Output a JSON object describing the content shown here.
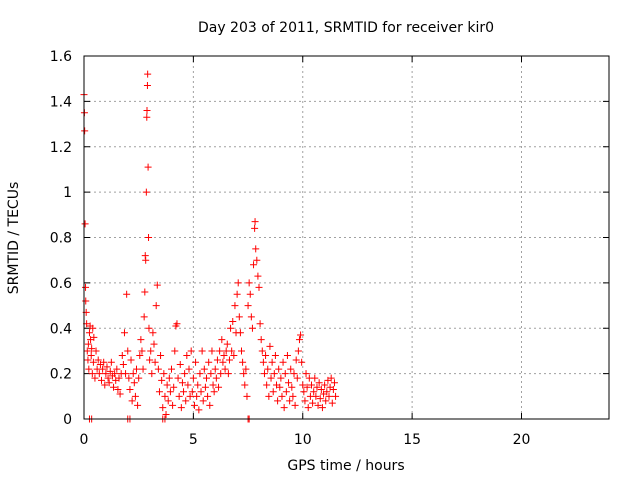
{
  "chart_data": {
    "type": "scatter",
    "title": "Day 203 of 2011, SRMTID for receiver kir0",
    "xlabel": "GPS time / hours",
    "ylabel": "SRMTID / TECUs",
    "xlim": [
      0,
      24
    ],
    "ylim": [
      0,
      1.6
    ],
    "xticks": [
      0,
      5,
      10,
      15,
      20
    ],
    "xtick_labels": [
      "0",
      "5",
      "10",
      "15",
      "20"
    ],
    "yticks": [
      0,
      0.2,
      0.4,
      0.6,
      0.8,
      1,
      1.2,
      1.4,
      1.6
    ],
    "ytick_labels": [
      "0",
      "0.2",
      "0.4",
      "0.6",
      "0.8",
      "1",
      "1.2",
      "1.4",
      "1.6"
    ],
    "grid": true,
    "marker": "+",
    "color": "#ff0000",
    "series": [
      {
        "points": [
          [
            0.0,
            1.43
          ],
          [
            0.02,
            1.35
          ],
          [
            0.03,
            1.27
          ],
          [
            0.05,
            0.86
          ],
          [
            0.07,
            0.58
          ],
          [
            0.08,
            0.52
          ],
          [
            0.1,
            0.47
          ],
          [
            0.12,
            0.42
          ],
          [
            0.15,
            0.3
          ],
          [
            0.18,
            0.26
          ],
          [
            0.2,
            0.33
          ],
          [
            0.22,
            0.22
          ],
          [
            0.25,
            0.38
          ],
          [
            0.28,
            0.41
          ],
          [
            0.3,
            0.35
          ],
          [
            0.33,
            0.28
          ],
          [
            0.35,
            0.31
          ],
          [
            0.38,
            0.2
          ],
          [
            0.4,
            0.4
          ],
          [
            0.43,
            0.25
          ],
          [
            0.45,
            0.36
          ],
          [
            0.5,
            0.18
          ],
          [
            0.55,
            0.3
          ],
          [
            0.6,
            0.22
          ],
          [
            0.25,
            0.0
          ],
          [
            0.35,
            0.0
          ],
          [
            0.65,
            0.26
          ],
          [
            0.7,
            0.2
          ],
          [
            0.75,
            0.24
          ],
          [
            0.8,
            0.17
          ],
          [
            0.85,
            0.22
          ],
          [
            0.9,
            0.25
          ],
          [
            0.95,
            0.15
          ],
          [
            1.0,
            0.2
          ],
          [
            1.05,
            0.23
          ],
          [
            1.1,
            0.18
          ],
          [
            1.15,
            0.16
          ],
          [
            1.2,
            0.21
          ],
          [
            1.25,
            0.25
          ],
          [
            1.3,
            0.19
          ],
          [
            1.35,
            0.14
          ],
          [
            1.4,
            0.2
          ],
          [
            1.45,
            0.17
          ],
          [
            1.5,
            0.22
          ],
          [
            1.55,
            0.13
          ],
          [
            1.6,
            0.18
          ],
          [
            1.65,
            0.11
          ],
          [
            1.7,
            0.2
          ],
          [
            1.75,
            0.28
          ],
          [
            1.8,
            0.24
          ],
          [
            1.85,
            0.38
          ],
          [
            1.9,
            0.2
          ],
          [
            1.95,
            0.55
          ],
          [
            2.0,
            0.3
          ],
          [
            2.05,
            0.18
          ],
          [
            2.1,
            0.13
          ],
          [
            2.15,
            0.26
          ],
          [
            2.2,
            0.08
          ],
          [
            2.0,
            0.0
          ],
          [
            2.1,
            0.0
          ],
          [
            2.25,
            0.2
          ],
          [
            2.3,
            0.16
          ],
          [
            2.35,
            0.1
          ],
          [
            2.4,
            0.22
          ],
          [
            2.45,
            0.06
          ],
          [
            2.5,
            0.18
          ],
          [
            2.55,
            0.28
          ],
          [
            2.6,
            0.35
          ],
          [
            2.65,
            0.3
          ],
          [
            2.7,
            0.22
          ],
          [
            2.75,
            0.45
          ],
          [
            2.78,
            0.56
          ],
          [
            2.8,
            0.72
          ],
          [
            2.82,
            0.7
          ],
          [
            2.85,
            1.0
          ],
          [
            2.87,
            1.33
          ],
          [
            2.88,
            1.36
          ],
          [
            2.9,
            1.47
          ],
          [
            2.91,
            1.52
          ],
          [
            2.93,
            1.11
          ],
          [
            2.95,
            0.8
          ],
          [
            2.97,
            0.4
          ],
          [
            3.0,
            0.26
          ],
          [
            3.05,
            0.3
          ],
          [
            3.1,
            0.2
          ],
          [
            3.15,
            0.38
          ],
          [
            3.2,
            0.33
          ],
          [
            3.25,
            0.25
          ],
          [
            3.3,
            0.5
          ],
          [
            3.35,
            0.59
          ],
          [
            3.4,
            0.22
          ],
          [
            3.45,
            0.12
          ],
          [
            3.5,
            0.28
          ],
          [
            3.55,
            0.17
          ],
          [
            3.6,
            0.05
          ],
          [
            3.65,
            0.2
          ],
          [
            3.7,
            0.1
          ],
          [
            3.75,
            0.02
          ],
          [
            3.8,
            0.15
          ],
          [
            3.85,
            0.08
          ],
          [
            3.6,
            0.0
          ],
          [
            3.7,
            0.0
          ],
          [
            3.9,
            0.18
          ],
          [
            3.95,
            0.12
          ],
          [
            4.0,
            0.22
          ],
          [
            4.05,
            0.06
          ],
          [
            4.1,
            0.14
          ],
          [
            4.15,
            0.3
          ],
          [
            4.2,
            0.41
          ],
          [
            4.25,
            0.42
          ],
          [
            4.3,
            0.18
          ],
          [
            4.35,
            0.1
          ],
          [
            4.4,
            0.24
          ],
          [
            4.45,
            0.05
          ],
          [
            4.5,
            0.16
          ],
          [
            4.55,
            0.12
          ],
          [
            4.6,
            0.2
          ],
          [
            4.65,
            0.08
          ],
          [
            4.7,
            0.28
          ],
          [
            4.75,
            0.15
          ],
          [
            4.8,
            0.22
          ],
          [
            4.85,
            0.1
          ],
          [
            4.9,
            0.3
          ],
          [
            4.95,
            0.12
          ],
          [
            5.0,
            0.18
          ],
          [
            5.05,
            0.06
          ],
          [
            5.1,
            0.25
          ],
          [
            5.15,
            0.1
          ],
          [
            5.2,
            0.15
          ],
          [
            5.25,
            0.04
          ],
          [
            5.3,
            0.2
          ],
          [
            5.35,
            0.12
          ],
          [
            5.4,
            0.3
          ],
          [
            5.45,
            0.08
          ],
          [
            5.5,
            0.22
          ],
          [
            5.55,
            0.14
          ],
          [
            5.6,
            0.18
          ],
          [
            5.65,
            0.1
          ],
          [
            5.7,
            0.25
          ],
          [
            5.75,
            0.06
          ],
          [
            5.8,
            0.2
          ],
          [
            5.85,
            0.3
          ],
          [
            5.9,
            0.15
          ],
          [
            5.95,
            0.12
          ],
          [
            6.0,
            0.22
          ],
          [
            6.05,
            0.18
          ],
          [
            6.1,
            0.26
          ],
          [
            6.15,
            0.14
          ],
          [
            6.2,
            0.3
          ],
          [
            6.25,
            0.2
          ],
          [
            6.3,
            0.35
          ],
          [
            6.35,
            0.25
          ],
          [
            6.4,
            0.28
          ],
          [
            6.45,
            0.22
          ],
          [
            6.5,
            0.3
          ],
          [
            6.55,
            0.33
          ],
          [
            6.6,
            0.2
          ],
          [
            6.65,
            0.26
          ],
          [
            6.7,
            0.4
          ],
          [
            6.75,
            0.3
          ],
          [
            6.8,
            0.43
          ],
          [
            6.85,
            0.28
          ],
          [
            6.9,
            0.5
          ],
          [
            6.95,
            0.38
          ],
          [
            7.0,
            0.55
          ],
          [
            7.05,
            0.6
          ],
          [
            7.1,
            0.45
          ],
          [
            7.15,
            0.38
          ],
          [
            7.2,
            0.3
          ],
          [
            7.25,
            0.25
          ],
          [
            7.3,
            0.2
          ],
          [
            7.35,
            0.15
          ],
          [
            7.4,
            0.22
          ],
          [
            7.45,
            0.1
          ],
          [
            7.5,
            0.0
          ],
          [
            7.55,
            0.0
          ],
          [
            7.5,
            0.5
          ],
          [
            7.55,
            0.6
          ],
          [
            7.6,
            0.55
          ],
          [
            7.65,
            0.45
          ],
          [
            7.7,
            0.4
          ],
          [
            7.75,
            0.68
          ],
          [
            7.8,
            0.84
          ],
          [
            7.82,
            0.87
          ],
          [
            7.85,
            0.75
          ],
          [
            7.9,
            0.7
          ],
          [
            7.95,
            0.63
          ],
          [
            8.0,
            0.58
          ],
          [
            8.05,
            0.42
          ],
          [
            8.1,
            0.35
          ],
          [
            8.15,
            0.3
          ],
          [
            8.2,
            0.25
          ],
          [
            8.25,
            0.2
          ],
          [
            8.3,
            0.28
          ],
          [
            8.35,
            0.15
          ],
          [
            8.4,
            0.22
          ],
          [
            8.45,
            0.1
          ],
          [
            8.5,
            0.32
          ],
          [
            8.55,
            0.18
          ],
          [
            8.6,
            0.25
          ],
          [
            8.65,
            0.12
          ],
          [
            8.7,
            0.2
          ],
          [
            8.75,
            0.28
          ],
          [
            8.8,
            0.15
          ],
          [
            8.85,
            0.08
          ],
          [
            8.9,
            0.22
          ],
          [
            8.95,
            0.14
          ],
          [
            9.0,
            0.18
          ],
          [
            9.05,
            0.1
          ],
          [
            9.1,
            0.25
          ],
          [
            9.15,
            0.05
          ],
          [
            9.2,
            0.2
          ],
          [
            9.25,
            0.12
          ],
          [
            9.3,
            0.28
          ],
          [
            9.35,
            0.16
          ],
          [
            9.4,
            0.08
          ],
          [
            9.45,
            0.22
          ],
          [
            9.5,
            0.14
          ],
          [
            9.55,
            0.1
          ],
          [
            9.6,
            0.2
          ],
          [
            9.65,
            0.06
          ],
          [
            9.7,
            0.26
          ],
          [
            9.75,
            0.18
          ],
          [
            9.8,
            0.3
          ],
          [
            9.85,
            0.35
          ],
          [
            9.9,
            0.37
          ],
          [
            9.95,
            0.25
          ],
          [
            10.0,
            0.15
          ],
          [
            10.05,
            0.12
          ],
          [
            10.1,
            0.08
          ],
          [
            10.15,
            0.2
          ],
          [
            10.2,
            0.14
          ],
          [
            10.25,
            0.05
          ],
          [
            10.3,
            0.18
          ],
          [
            10.35,
            0.1
          ],
          [
            10.4,
            0.15
          ],
          [
            10.45,
            0.07
          ],
          [
            10.5,
            0.12
          ],
          [
            10.55,
            0.18
          ],
          [
            10.6,
            0.1
          ],
          [
            10.65,
            0.14
          ],
          [
            10.7,
            0.06
          ],
          [
            10.75,
            0.16
          ],
          [
            10.8,
            0.09
          ],
          [
            10.85,
            0.13
          ],
          [
            10.9,
            0.05
          ],
          [
            10.95,
            0.11
          ],
          [
            11.0,
            0.15
          ],
          [
            11.05,
            0.08
          ],
          [
            11.1,
            0.12
          ],
          [
            11.15,
            0.17
          ],
          [
            11.2,
            0.1
          ],
          [
            11.25,
            0.14
          ],
          [
            11.3,
            0.18
          ],
          [
            11.35,
            0.07
          ],
          [
            11.4,
            0.13
          ],
          [
            11.45,
            0.16
          ],
          [
            11.5,
            0.1
          ]
        ]
      }
    ]
  }
}
